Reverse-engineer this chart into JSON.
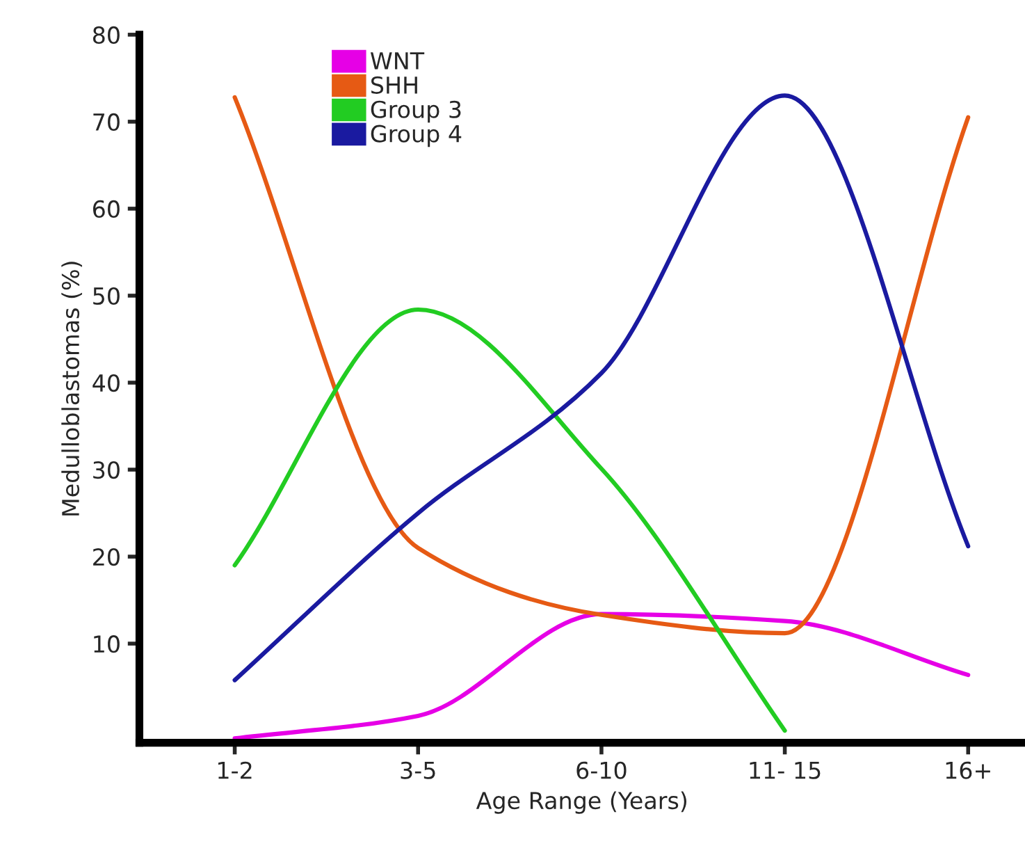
{
  "chart_data": {
    "type": "line",
    "xlabel": "Age Range (Years)",
    "ylabel": "Medulloblastomas (%)",
    "categories": [
      "1-2",
      "3-5",
      "6-10",
      "11- 15",
      "16+"
    ],
    "ylim": [
      -1.4,
      80
    ],
    "yticks": [
      10,
      20,
      30,
      40,
      50,
      60,
      70,
      80
    ],
    "grid": false,
    "legend": "top left",
    "marker": "none",
    "line_style": "solid",
    "series": [
      {
        "name": "WNT",
        "color": "#e600e6",
        "values": [
          -0.9,
          1.7,
          13.4,
          12.6,
          6.4
        ]
      },
      {
        "name": "SHH",
        "color": "#e65a14",
        "values": [
          72.8,
          21,
          13.3,
          11.2,
          70.5
        ]
      },
      {
        "name": "Group 3",
        "color": "#22cc22",
        "values": [
          19.0,
          48.4,
          30.1,
          0,
          null
        ]
      },
      {
        "name": "Group 4",
        "color": "#1a1aa0",
        "values": [
          5.8,
          25,
          41.1,
          73,
          21.2
        ]
      }
    ]
  }
}
